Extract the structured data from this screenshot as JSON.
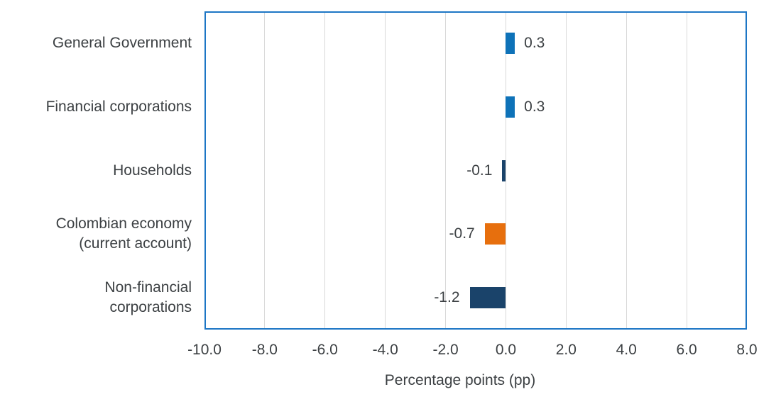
{
  "chart_data": {
    "type": "bar",
    "orientation": "horizontal",
    "title": "",
    "xlabel": "Percentage points (pp)",
    "ylabel": "",
    "categories": [
      "General Government",
      "Financial corporations",
      "Households",
      "Colombian economy\n(current account)",
      "Non-financial\ncorporations"
    ],
    "values": [
      0.3,
      0.3,
      -0.1,
      -0.7,
      -1.2
    ],
    "value_labels": [
      "0.3",
      "0.3",
      "-0.1",
      "-0.7",
      "-1.2"
    ],
    "bar_colors": [
      "#0e72b8",
      "#0e72b8",
      "#1a436a",
      "#e76f0d",
      "#1a436a"
    ],
    "xlim": [
      -10,
      8
    ],
    "xticks": [
      -10,
      -8,
      -6,
      -4,
      -2,
      0,
      2,
      4,
      6,
      8
    ],
    "xticklabels": [
      "-10.0",
      "-8.0",
      "-6.0",
      "-4.0",
      "-2.0",
      "0.0",
      "2.0",
      "4.0",
      "6.0",
      "8.0"
    ],
    "grid": "vertical",
    "legend": "none",
    "colors": {
      "frame": "#1d76c5",
      "gridline": "#d9d9d9",
      "text": "#3c4043",
      "positive_bar": "#0e72b8",
      "negative_bar": "#1a436a",
      "highlight_bar": "#e76f0d"
    }
  }
}
